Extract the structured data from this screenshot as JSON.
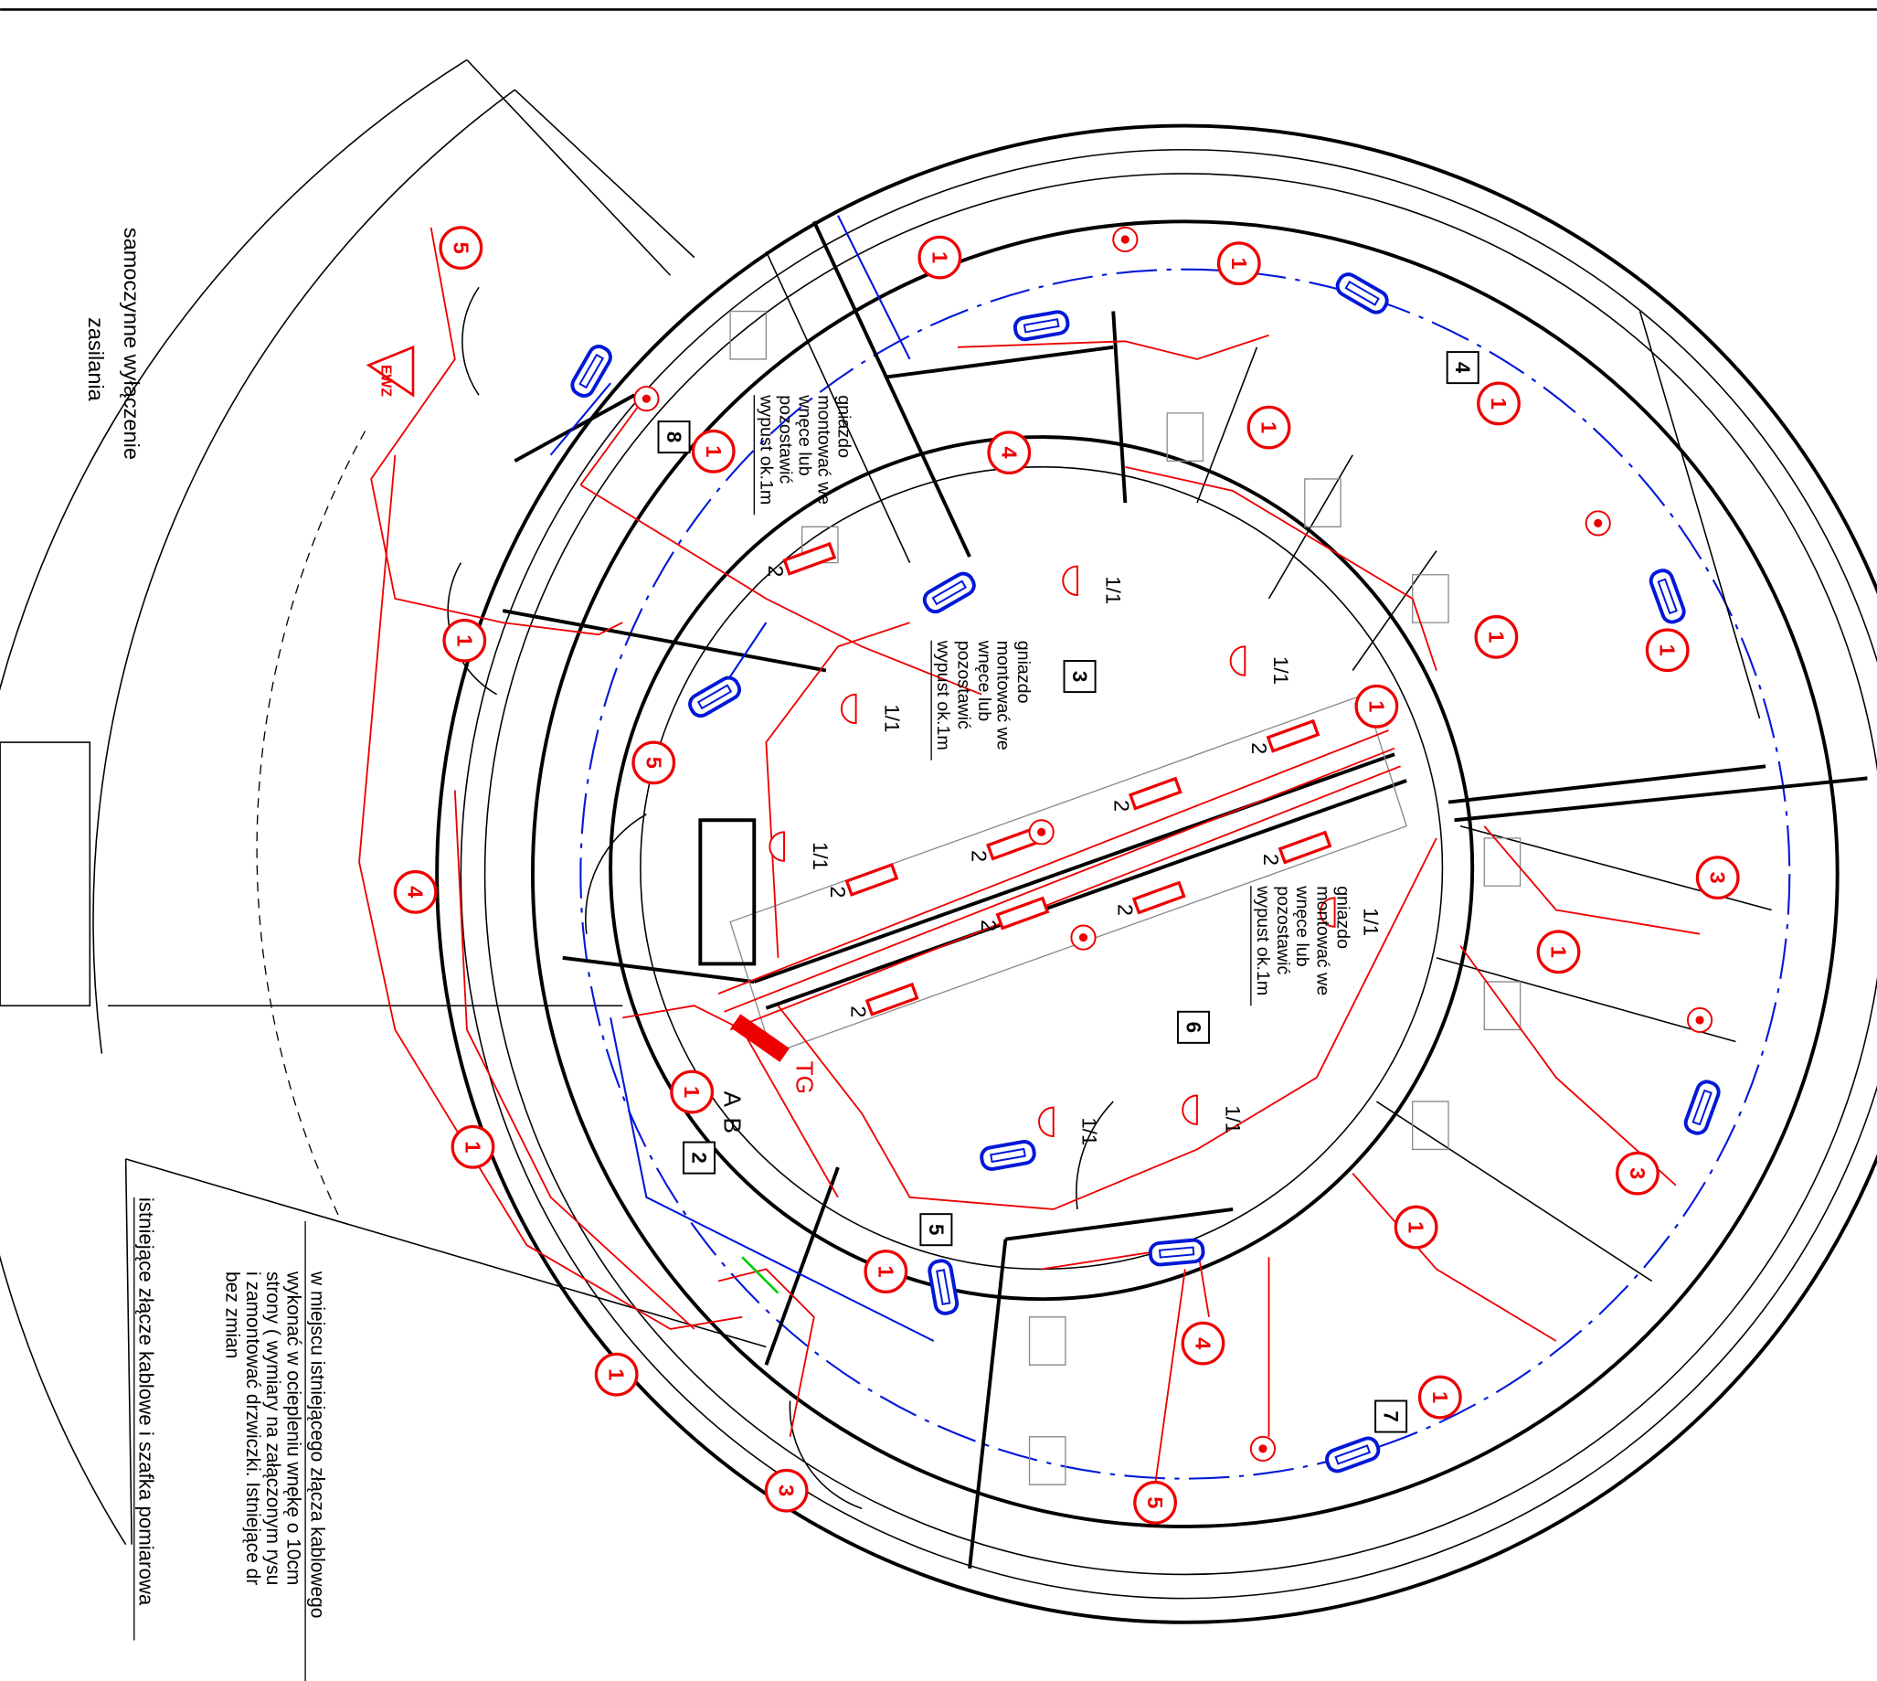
{
  "notes": {
    "supply_cutoff": [
      "samoczynne wyłączenie",
      "zasilania"
    ],
    "existing_connection": "istniejące złącze kablowe i szafka pomiarowa",
    "niche_note": [
      "w miejscu istniejącego  złącza kablowego",
      "wykonać  w ociepleniu  wnękę o 10cm",
      "strony ( wymiary  na załączonym  rysu",
      "i  zamontować drzwiczki.  Istniejące dr",
      "bez zmian"
    ]
  },
  "rooms": [
    "8",
    "4",
    "3",
    "6",
    "2",
    "5",
    "7"
  ],
  "circuits": [
    "5",
    "1",
    "1",
    "4",
    "1",
    "1",
    "1",
    "1",
    "1",
    "1",
    "5",
    "4",
    "3",
    "1",
    "1",
    "1",
    "3",
    "1",
    "1",
    "4",
    "1",
    "1",
    "3",
    "5",
    "1"
  ],
  "fixture_labels": [
    "2",
    "2",
    "2",
    "2",
    "2",
    "2",
    "2",
    "2",
    "2"
  ],
  "lamp_labels": [
    "1/1",
    "1/1",
    "1/1",
    "1/1",
    "1/1",
    "1/1",
    "1/1"
  ],
  "socket_notes": [
    [
      "gniazdo",
      "montować we",
      "wnęce lub",
      "pozostawić",
      "wypust ok.1m"
    ],
    [
      "gniazdo",
      "montować we",
      "wnęce lub",
      "pozostawić",
      "wypust ok.1m"
    ],
    [
      "gniazdo",
      "montować we",
      "wnęce lub",
      "pozostawić",
      "wypust ok.1m"
    ]
  ],
  "panel": {
    "name": "TG",
    "a": "A",
    "b": "B"
  },
  "ewz": "EWZ"
}
